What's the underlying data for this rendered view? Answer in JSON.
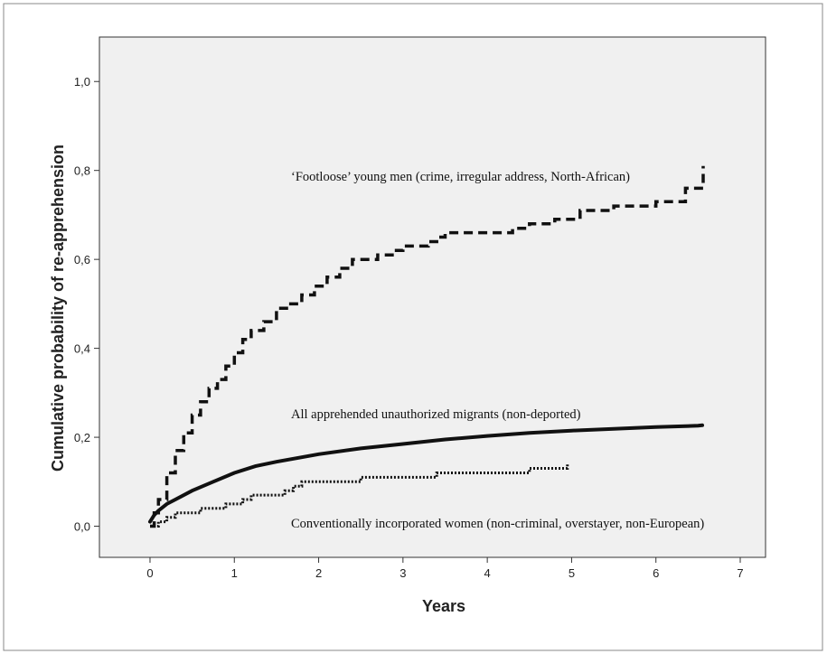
{
  "chart_data": {
    "type": "line",
    "xlabel": "Years",
    "ylabel": "Cumulative probability of re-apprehension",
    "xlim": [
      -0.6,
      7.3
    ],
    "ylim": [
      -0.07,
      1.1
    ],
    "xticks": [
      0,
      1,
      2,
      3,
      4,
      5,
      6,
      7
    ],
    "yticks": [
      0.0,
      0.2,
      0.4,
      0.6,
      0.8,
      1.0
    ],
    "xtick_labels": [
      "0",
      "1",
      "2",
      "3",
      "4",
      "5",
      "6",
      "7"
    ],
    "ytick_labels": [
      "0,0",
      "0,2",
      "0,4",
      "0,6",
      "0,8",
      "1,0"
    ],
    "grid": false,
    "legend": "none",
    "background_color": "#f0f0f0",
    "series": [
      {
        "name": "'Footloose' young men (crime, irregular address, North-African)",
        "line_style": "dashed",
        "x": [
          0,
          0.05,
          0.1,
          0.2,
          0.3,
          0.4,
          0.5,
          0.6,
          0.7,
          0.8,
          0.9,
          1.0,
          1.1,
          1.2,
          1.35,
          1.5,
          1.65,
          1.8,
          1.95,
          2.1,
          2.25,
          2.4,
          2.55,
          2.7,
          2.9,
          3.0,
          3.2,
          3.3,
          3.4,
          3.5,
          3.8,
          4.0,
          4.3,
          4.5,
          4.7,
          4.8,
          5.0,
          5.1,
          5.5,
          5.9,
          6.0,
          6.3,
          6.35,
          6.5,
          6.55,
          6.56
        ],
        "y": [
          0.0,
          0.03,
          0.06,
          0.12,
          0.17,
          0.21,
          0.25,
          0.28,
          0.31,
          0.33,
          0.36,
          0.39,
          0.42,
          0.44,
          0.46,
          0.49,
          0.5,
          0.52,
          0.54,
          0.56,
          0.58,
          0.6,
          0.6,
          0.61,
          0.62,
          0.63,
          0.63,
          0.64,
          0.65,
          0.66,
          0.66,
          0.66,
          0.67,
          0.68,
          0.68,
          0.69,
          0.69,
          0.71,
          0.72,
          0.72,
          0.73,
          0.73,
          0.76,
          0.76,
          0.76,
          0.81
        ],
        "color": "#111111"
      },
      {
        "name": "All apprehended unauthorized migrants (non-deported)",
        "line_style": "solid",
        "x": [
          0,
          0.05,
          0.1,
          0.2,
          0.3,
          0.5,
          0.75,
          1.0,
          1.25,
          1.5,
          2.0,
          2.5,
          3.0,
          3.5,
          4.0,
          4.5,
          5.0,
          5.5,
          6.0,
          6.5,
          6.55
        ],
        "y": [
          0.01,
          0.025,
          0.035,
          0.05,
          0.06,
          0.08,
          0.1,
          0.12,
          0.135,
          0.145,
          0.162,
          0.175,
          0.185,
          0.195,
          0.203,
          0.21,
          0.215,
          0.219,
          0.223,
          0.226,
          0.227
        ],
        "color": "#111111"
      },
      {
        "name": "Conventionally incorporated women (non-criminal, overstayer, non-European)",
        "line_style": "dotted",
        "x": [
          0,
          0.1,
          0.2,
          0.3,
          0.5,
          0.6,
          0.8,
          0.9,
          1.0,
          1.1,
          1.2,
          1.4,
          1.6,
          1.7,
          1.8,
          1.9,
          2.2,
          2.5,
          2.8,
          3.2,
          3.4,
          3.6,
          4.0,
          4.4,
          4.5,
          4.7,
          4.95
        ],
        "y": [
          0.0,
          0.01,
          0.02,
          0.03,
          0.03,
          0.04,
          0.04,
          0.05,
          0.05,
          0.06,
          0.07,
          0.07,
          0.08,
          0.09,
          0.1,
          0.1,
          0.1,
          0.11,
          0.11,
          0.11,
          0.12,
          0.12,
          0.12,
          0.12,
          0.13,
          0.13,
          0.14
        ],
        "color": "#111111"
      }
    ],
    "annotations": [
      {
        "text": "‘Footloose’ young men (crime, irregular address, North-African)",
        "anchor_series": 0
      },
      {
        "text": "All apprehended unauthorized migrants (non-deported)",
        "anchor_series": 1
      },
      {
        "text": "Conventionally incorporated women (non-criminal, overstayer, non-European)",
        "anchor_series": 2
      }
    ]
  }
}
